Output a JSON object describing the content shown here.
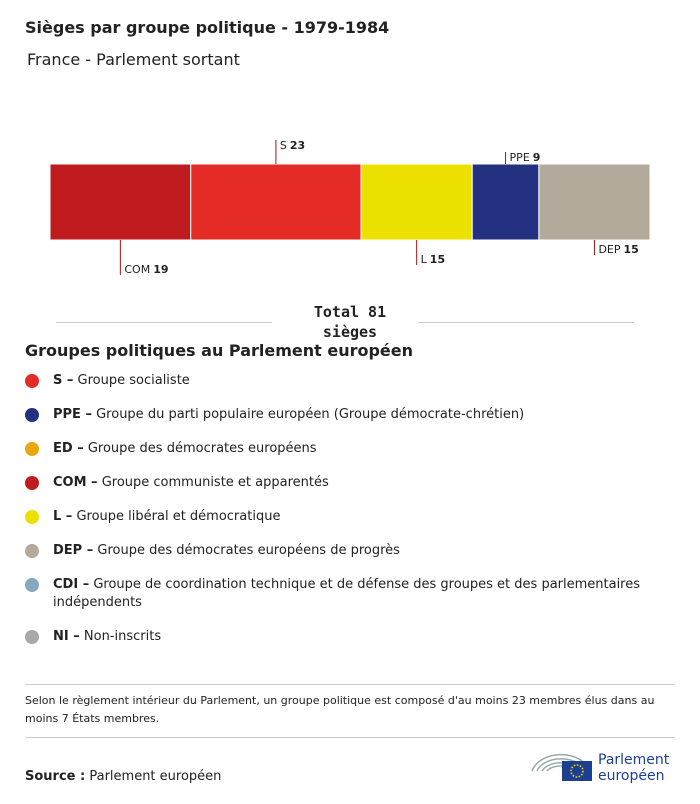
{
  "chart_data": {
    "type": "stacked-bar",
    "title": "Sièges par groupe politique - 1979-1984",
    "subtitle": "France - Parlement sortant",
    "series": [
      {
        "name": "COM",
        "color": "#c01b1e",
        "values": [
          19
        ]
      },
      {
        "name": "S",
        "color": "#e52b26",
        "values": [
          23
        ]
      },
      {
        "name": "L",
        "color": "#ece000",
        "values": [
          15
        ]
      },
      {
        "name": "PPE",
        "color": "#243180",
        "values": [
          9
        ]
      },
      {
        "name": "DEP",
        "color": "#b3aa9c",
        "values": [
          15
        ]
      }
    ],
    "xlim": [
      0,
      81
    ],
    "total_label": "Total 81 sièges",
    "legend_title": "Groupes politiques au Parlement européen",
    "legend_groups": [
      {
        "abbr": "S –",
        "label": "Groupe socialiste",
        "color": "#e52b26"
      },
      {
        "abbr": "PPE –",
        "label": "Groupe du parti populaire européen (Groupe démocrate-chrétien)",
        "color": "#243180"
      },
      {
        "abbr": "ED –",
        "label": "Groupe des démocrates européens",
        "color": "#e8a70a"
      },
      {
        "abbr": "COM –",
        "label": "Groupe communiste et apparentés",
        "color": "#c01b1e"
      },
      {
        "abbr": "L –",
        "label": "Groupe libéral et démocratique",
        "color": "#ece000"
      },
      {
        "abbr": "DEP –",
        "label": "Groupe des démocrates européens de progrès",
        "color": "#b3aa9c"
      },
      {
        "abbr": "CDI –",
        "label": "Groupe de coordination technique et de défense des groupes et des parlementaires indépendents",
        "color": "#86a9bf"
      },
      {
        "abbr": "NI –",
        "label": "Non-inscrits",
        "color": "#a8a8a8"
      }
    ],
    "note": "Selon le règlement intérieur du Parlement, un groupe politique est composé d'au moins 23 membres élus dans au moins 7 États membres.",
    "source_label": "Source :",
    "source": "Parlement européen",
    "logo_text": "Parlement européen"
  }
}
